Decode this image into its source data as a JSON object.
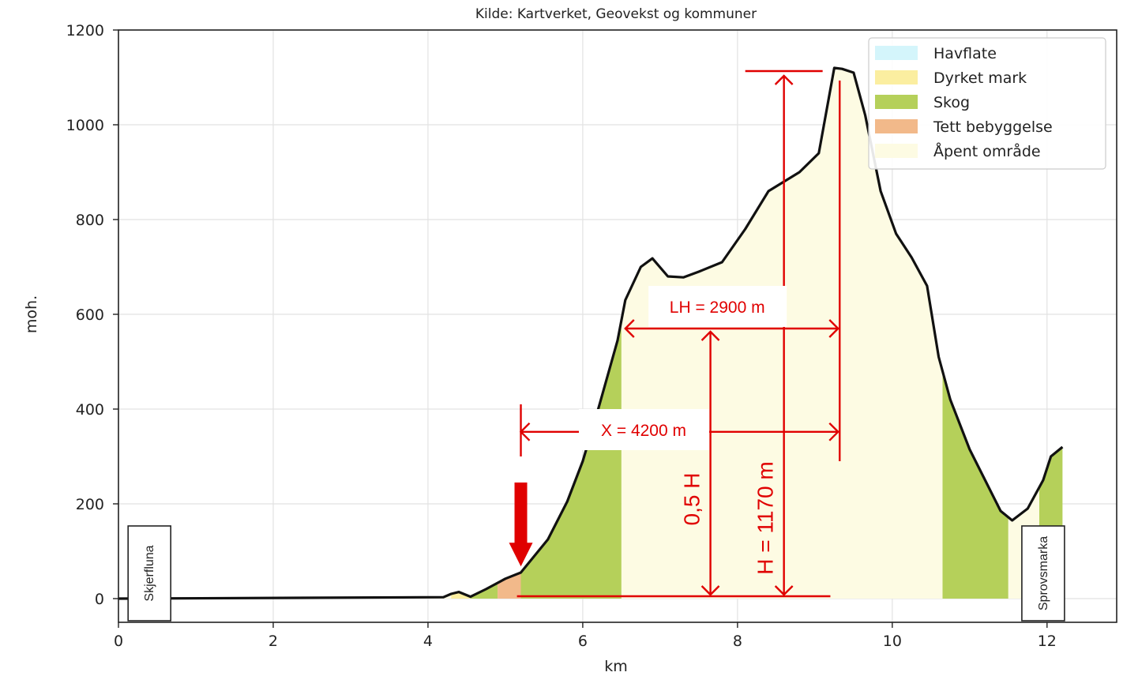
{
  "chart_data": {
    "type": "area",
    "subtitle": "Kilde: Kartverket, Geovekst og kommuner",
    "xlabel": "km",
    "ylabel": "moh.",
    "xlim": [
      0,
      12.9
    ],
    "ylim": [
      -50,
      1200
    ],
    "x_ticks": [
      0,
      2,
      4,
      6,
      8,
      10,
      12
    ],
    "y_ticks": [
      0,
      200,
      400,
      600,
      800,
      1000,
      1200
    ],
    "grid": true,
    "legend_position": "top-right",
    "legend": [
      {
        "label": "Havflate",
        "color": "#d4f5fb"
      },
      {
        "label": "Dyrket mark",
        "color": "#fbeea0"
      },
      {
        "label": "Skog",
        "color": "#b5d05a"
      },
      {
        "label": "Tett bebyggelse",
        "color": "#f2b98a"
      },
      {
        "label": "Åpent område",
        "color": "#fdfbe3"
      }
    ],
    "profile": {
      "x": [
        0,
        4.2,
        4.3,
        4.4,
        4.55,
        4.75,
        5.0,
        5.2,
        5.35,
        5.55,
        5.8,
        6.0,
        6.2,
        6.45,
        6.55,
        6.75,
        6.9,
        7.1,
        7.3,
        7.5,
        7.8,
        8.1,
        8.4,
        8.8,
        9.05,
        9.25,
        9.35,
        9.5,
        9.65,
        9.85,
        10.05,
        10.25,
        10.45,
        10.6,
        10.75,
        11.0,
        11.2,
        11.4,
        11.55,
        11.75,
        11.95,
        12.05,
        12.2
      ],
      "y": [
        0,
        3,
        10,
        14,
        4,
        20,
        42,
        55,
        85,
        125,
        205,
        290,
        400,
        545,
        630,
        700,
        718,
        680,
        678,
        690,
        710,
        780,
        860,
        900,
        940,
        1120,
        1118,
        1110,
        1020,
        860,
        770,
        720,
        660,
        510,
        420,
        315,
        250,
        185,
        165,
        190,
        250,
        300,
        320
      ]
    },
    "land_cover": [
      {
        "class": "Åpent område",
        "x_start": 0.0,
        "x_end": 4.3
      },
      {
        "class": "Dyrket mark",
        "x_start": 4.3,
        "x_end": 4.55
      },
      {
        "class": "Skog",
        "x_start": 4.55,
        "x_end": 4.9
      },
      {
        "class": "Tett bebyggelse",
        "x_start": 4.9,
        "x_end": 5.2
      },
      {
        "class": "Skog",
        "x_start": 5.2,
        "x_end": 6.5
      },
      {
        "class": "Åpent område",
        "x_start": 6.5,
        "x_end": 10.65
      },
      {
        "class": "Skog",
        "x_start": 10.65,
        "x_end": 11.5
      },
      {
        "class": "Åpent område",
        "x_start": 11.5,
        "x_end": 11.9
      },
      {
        "class": "Skog",
        "x_start": 11.9,
        "x_end": 12.2
      }
    ],
    "place_labels": [
      {
        "text": "Skjerfluna",
        "x": 0.4
      },
      {
        "text": "Sprovsmarka",
        "x": 11.95
      }
    ],
    "annotations": {
      "lh_label": "LH = 2900 m",
      "x_label": "X = 4200 m",
      "half_h_label": "0,5 H",
      "h_label": "H = 1170 m",
      "x_start_km": 5.2,
      "peak_km": 9.3,
      "lh_left_km": 6.55,
      "half_h_km": 7.65,
      "h_km": 8.6,
      "lh_y": 570,
      "x_y": 352,
      "base_y": 5,
      "peak_y": 1110
    }
  }
}
